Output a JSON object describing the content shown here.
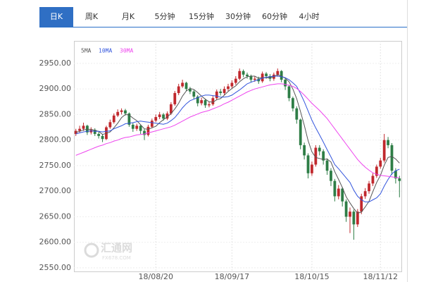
{
  "tabs": [
    "日K",
    "周K",
    "月K",
    "5分钟",
    "15分钟",
    "30分钟",
    "60分钟",
    "4小时"
  ],
  "active_tab": 0,
  "chart_data": {
    "type": "candlestick",
    "categories": [
      null,
      null,
      null,
      null,
      null,
      null,
      null,
      null,
      null,
      null,
      null,
      null,
      null,
      null,
      null,
      null,
      null,
      null,
      null,
      null,
      null,
      "18/08/20",
      null,
      null,
      null,
      null,
      null,
      null,
      null,
      null,
      null,
      null,
      null,
      null,
      null,
      null,
      null,
      null,
      null,
      null,
      null,
      "18/09/17",
      null,
      null,
      null,
      null,
      null,
      null,
      null,
      null,
      null,
      null,
      null,
      null,
      null,
      null,
      null,
      null,
      null,
      null,
      null,
      null,
      "18/10/15",
      null,
      null,
      null,
      null,
      null,
      null,
      null,
      null,
      null,
      null,
      null,
      null,
      null,
      null,
      null,
      null,
      null,
      "18/11/12",
      null,
      null,
      null,
      null,
      null
    ],
    "open": [
      2812,
      2818,
      2822,
      2828,
      2815,
      2820,
      2812,
      2808,
      2802,
      2825,
      2835,
      2848,
      2855,
      2858,
      2852,
      2830,
      2822,
      2828,
      2818,
      2810,
      2826,
      2838,
      2845,
      2850,
      2842,
      2852,
      2870,
      2892,
      2905,
      2912,
      2900,
      2895,
      2885,
      2872,
      2878,
      2868,
      2870,
      2882,
      2895,
      2892,
      2900,
      2905,
      2912,
      2920,
      2935,
      2928,
      2925,
      2918,
      2920,
      2915,
      2930,
      2925,
      2920,
      2928,
      2935,
      2918,
      2905,
      2882,
      2862,
      2840,
      2790,
      2770,
      2735,
      2752,
      2785,
      2778,
      2760,
      2740,
      2720,
      2690,
      2705,
      2680,
      2650,
      2660,
      2635,
      2660,
      2690,
      2700,
      2715,
      2730,
      2748,
      2760,
      2800,
      2790,
      2740,
      2725
    ],
    "high": [
      2822,
      2828,
      2834,
      2830,
      2825,
      2823,
      2816,
      2812,
      2828,
      2840,
      2852,
      2860,
      2862,
      2861,
      2854,
      2834,
      2832,
      2830,
      2822,
      2830,
      2842,
      2850,
      2855,
      2853,
      2856,
      2874,
      2896,
      2910,
      2918,
      2914,
      2904,
      2898,
      2888,
      2883,
      2881,
      2875,
      2886,
      2899,
      2900,
      2905,
      2910,
      2917,
      2925,
      2940,
      2938,
      2932,
      2928,
      2925,
      2924,
      2934,
      2933,
      2929,
      2932,
      2940,
      2937,
      2920,
      2908,
      2885,
      2866,
      2842,
      2795,
      2774,
      2758,
      2790,
      2790,
      2782,
      2764,
      2745,
      2724,
      2712,
      2708,
      2684,
      2668,
      2664,
      2665,
      2695,
      2706,
      2720,
      2735,
      2752,
      2765,
      2812,
      2806,
      2794,
      2745,
      2730
    ],
    "low": [
      2808,
      2815,
      2818,
      2810,
      2811,
      2808,
      2803,
      2796,
      2800,
      2822,
      2832,
      2845,
      2850,
      2848,
      2826,
      2816,
      2818,
      2812,
      2800,
      2807,
      2823,
      2835,
      2841,
      2838,
      2839,
      2849,
      2867,
      2888,
      2902,
      2896,
      2890,
      2880,
      2866,
      2868,
      2863,
      2864,
      2867,
      2879,
      2887,
      2888,
      2896,
      2901,
      2908,
      2917,
      2923,
      2920,
      2913,
      2914,
      2910,
      2912,
      2920,
      2915,
      2916,
      2924,
      2913,
      2898,
      2876,
      2856,
      2832,
      2782,
      2762,
      2725,
      2730,
      2748,
      2770,
      2752,
      2732,
      2710,
      2680,
      2684,
      2670,
      2640,
      2618,
      2605,
      2630,
      2655,
      2685,
      2695,
      2710,
      2726,
      2744,
      2756,
      2784,
      2732,
      2715,
      2688
    ],
    "close": [
      2818,
      2822,
      2828,
      2815,
      2820,
      2812,
      2808,
      2802,
      2825,
      2835,
      2848,
      2855,
      2858,
      2852,
      2830,
      2822,
      2828,
      2818,
      2810,
      2826,
      2838,
      2845,
      2850,
      2842,
      2852,
      2870,
      2892,
      2905,
      2912,
      2900,
      2895,
      2885,
      2872,
      2878,
      2868,
      2870,
      2882,
      2895,
      2892,
      2900,
      2905,
      2912,
      2920,
      2935,
      2928,
      2925,
      2918,
      2920,
      2915,
      2930,
      2925,
      2920,
      2928,
      2935,
      2918,
      2905,
      2882,
      2862,
      2840,
      2790,
      2770,
      2735,
      2752,
      2785,
      2778,
      2760,
      2740,
      2720,
      2690,
      2705,
      2680,
      2650,
      2660,
      2635,
      2660,
      2690,
      2700,
      2715,
      2730,
      2748,
      2760,
      2800,
      2790,
      2740,
      2725,
      2720
    ],
    "series": [
      {
        "name": "5MA",
        "color": "#555555",
        "values": [
          2815,
          2817,
          2820,
          2821,
          2821,
          2819,
          2817,
          2811,
          2813,
          2816,
          2824,
          2833,
          2844,
          2850,
          2849,
          2843,
          2838,
          2830,
          2822,
          2821,
          2824,
          2827,
          2834,
          2840,
          2845,
          2852,
          2861,
          2872,
          2886,
          2896,
          2901,
          2899,
          2893,
          2886,
          2880,
          2875,
          2874,
          2879,
          2881,
          2888,
          2895,
          2901,
          2906,
          2914,
          2920,
          2924,
          2925,
          2925,
          2921,
          2922,
          2922,
          2922,
          2924,
          2928,
          2925,
          2921,
          2914,
          2900,
          2881,
          2856,
          2829,
          2799,
          2777,
          2766,
          2764,
          2762,
          2763,
          2757,
          2738,
          2723,
          2707,
          2689,
          2677,
          2666,
          2657,
          2659,
          2669,
          2680,
          2699,
          2717,
          2731,
          2751,
          2766,
          2768,
          2763,
          2755
        ]
      },
      {
        "name": "10MA",
        "color": "#3355dd",
        "values": [
          2812,
          2814,
          2816,
          2817,
          2818,
          2817,
          2817,
          2816,
          2817,
          2818,
          2822,
          2825,
          2828,
          2832,
          2833,
          2834,
          2836,
          2837,
          2836,
          2835,
          2834,
          2833,
          2832,
          2831,
          2833,
          2838,
          2844,
          2853,
          2863,
          2871,
          2877,
          2880,
          2883,
          2886,
          2888,
          2888,
          2887,
          2886,
          2884,
          2884,
          2885,
          2888,
          2893,
          2898,
          2904,
          2910,
          2913,
          2916,
          2918,
          2921,
          2923,
          2924,
          2925,
          2925,
          2924,
          2922,
          2918,
          2912,
          2905,
          2891,
          2875,
          2857,
          2839,
          2824,
          2810,
          2796,
          2781,
          2767,
          2752,
          2744,
          2735,
          2726,
          2717,
          2702,
          2690,
          2683,
          2679,
          2679,
          2683,
          2687,
          2695,
          2710,
          2723,
          2734,
          2740,
          2743
        ]
      },
      {
        "name": "30MA",
        "color": "#ee44ee",
        "values": [
          2770,
          2773,
          2776,
          2779,
          2782,
          2785,
          2788,
          2790,
          2793,
          2795,
          2798,
          2800,
          2803,
          2805,
          2806,
          2808,
          2810,
          2811,
          2812,
          2814,
          2816,
          2818,
          2820,
          2822,
          2824,
          2826,
          2829,
          2833,
          2837,
          2841,
          2845,
          2848,
          2851,
          2854,
          2856,
          2858,
          2861,
          2864,
          2867,
          2871,
          2874,
          2878,
          2882,
          2886,
          2890,
          2894,
          2897,
          2900,
          2902,
          2904,
          2906,
          2908,
          2909,
          2910,
          2910,
          2909,
          2907,
          2905,
          2901,
          2895,
          2888,
          2880,
          2872,
          2865,
          2858,
          2850,
          2842,
          2832,
          2822,
          2812,
          2802,
          2792,
          2782,
          2772,
          2762,
          2754,
          2747,
          2741,
          2736,
          2733,
          2731,
          2730,
          2729,
          2728,
          2727,
          2726
        ]
      }
    ],
    "up_color": "#c0282d",
    "down_color": "#2e7d46",
    "ylim": [
      2543,
      2994
    ],
    "yticks": [
      {
        "value": 2550,
        "label": "2550.00"
      },
      {
        "value": 2600,
        "label": "2600.00"
      },
      {
        "value": 2650,
        "label": "2650.00"
      },
      {
        "value": 2700,
        "label": "2700.00"
      },
      {
        "value": 2750,
        "label": "2750.00"
      },
      {
        "value": 2800,
        "label": "2800.00"
      },
      {
        "value": 2850,
        "label": "2850.00"
      },
      {
        "value": 2900,
        "label": "2900.00"
      },
      {
        "value": 2950,
        "label": "2950.00"
      }
    ],
    "grid": true,
    "watermark": {
      "title": "汇通网",
      "subtitle": "FX678.COM"
    }
  }
}
